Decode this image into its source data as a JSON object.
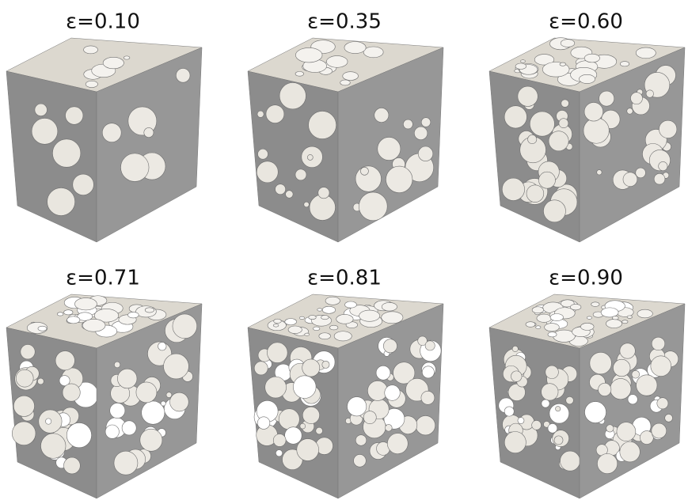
{
  "panels": [
    {
      "label": "ε=0.10"
    },
    {
      "label": "ε=0.35"
    },
    {
      "label": "ε=0.60"
    },
    {
      "label": "ε=0.71"
    },
    {
      "label": "ε=0.81"
    },
    {
      "label": "ε=0.90"
    }
  ]
}
